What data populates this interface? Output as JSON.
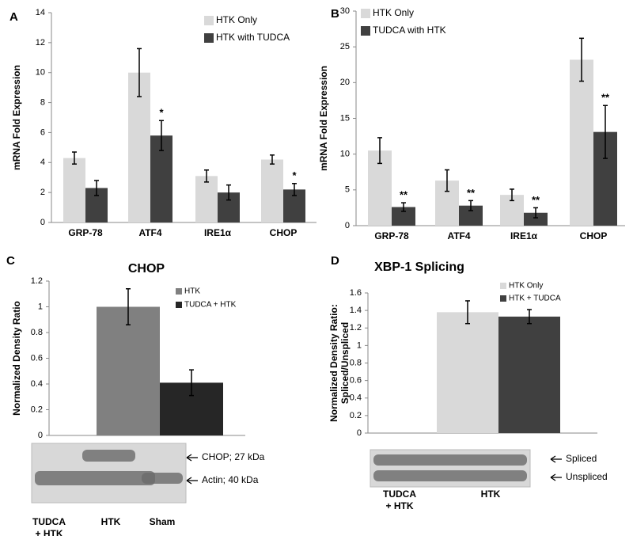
{
  "chart_data": [
    {
      "type": "bar",
      "panel_label": "A",
      "ylabel": [
        "mRNA Fold Expression"
      ],
      "categories": [
        "GRP-78",
        "ATF4",
        "IRE1α",
        "CHOP"
      ],
      "ylim": [
        0,
        14
      ],
      "yticks": [
        0,
        2,
        4,
        6,
        8,
        10,
        12,
        14
      ],
      "series": [
        {
          "name": "HTK Only",
          "color": "#d9d9d9",
          "values": [
            4.3,
            10.0,
            3.1,
            4.2
          ],
          "errors": [
            0.4,
            1.6,
            0.4,
            0.3
          ],
          "labels": [
            null,
            null,
            null,
            null
          ]
        },
        {
          "name": "HTK with TUDCA",
          "color": "#404040",
          "values": [
            2.3,
            5.8,
            2.0,
            2.2
          ],
          "errors": [
            0.5,
            1.0,
            0.5,
            0.4
          ],
          "labels": [
            null,
            "*",
            null,
            "*"
          ]
        }
      ]
    },
    {
      "type": "bar",
      "panel_label": "B",
      "ylabel": [
        "mRNA Fold Expression"
      ],
      "categories": [
        "GRP-78",
        "ATF4",
        "IRE1α",
        "CHOP"
      ],
      "ylim": [
        0,
        30
      ],
      "yticks": [
        0,
        5,
        10,
        15,
        20,
        25,
        30
      ],
      "series": [
        {
          "name": "HTK Only",
          "color": "#d9d9d9",
          "values": [
            10.5,
            6.3,
            4.3,
            23.2
          ],
          "errors": [
            1.8,
            1.5,
            0.8,
            3.0
          ],
          "labels": [
            null,
            null,
            null,
            null
          ]
        },
        {
          "name": "TUDCA with HTK",
          "color": "#404040",
          "values": [
            2.6,
            2.8,
            1.8,
            13.1
          ],
          "errors": [
            0.6,
            0.7,
            0.7,
            3.7
          ],
          "labels": [
            "**",
            "**",
            "**",
            "**"
          ]
        }
      ]
    },
    {
      "type": "bar",
      "panel_label": "C",
      "title": "CHOP",
      "ylabel": [
        "Normalized Density Ratio"
      ],
      "categories": [
        null
      ],
      "ylim": [
        0,
        1.2
      ],
      "yticks": [
        0,
        0.2,
        0.4,
        0.6,
        0.8,
        1,
        1.2
      ],
      "series": [
        {
          "name": "HTK",
          "color": "#808080",
          "values": [
            1.0
          ],
          "errors": [
            0.14
          ],
          "labels": [
            null
          ]
        },
        {
          "name": "TUDCA + HTK",
          "color": "#262626",
          "values": [
            0.41
          ],
          "errors": [
            0.1
          ],
          "labels": [
            null
          ]
        }
      ],
      "blot": {
        "bands": [
          "CHOP; 27 kDa",
          "Actin; 40 kDa"
        ],
        "lanes": [
          [
            "TUDCA",
            "+ HTK"
          ],
          [
            "HTK"
          ],
          [
            "Sham"
          ]
        ]
      }
    },
    {
      "type": "bar",
      "panel_label": "D",
      "title": "XBP-1 Splicing",
      "ylabel": [
        "Normalized Density Ratio:",
        "Spliced/Unspliced"
      ],
      "categories": [
        null
      ],
      "ylim": [
        0,
        1.6
      ],
      "yticks": [
        0,
        0.2,
        0.4,
        0.6,
        0.8,
        1,
        1.2,
        1.4,
        1.6
      ],
      "series": [
        {
          "name": "HTK Only",
          "color": "#d9d9d9",
          "values": [
            1.38
          ],
          "errors": [
            0.13
          ],
          "labels": [
            null
          ]
        },
        {
          "name": "HTK + TUDCA",
          "color": "#404040",
          "values": [
            1.33
          ],
          "errors": [
            0.08
          ],
          "labels": [
            null
          ]
        }
      ],
      "blot": {
        "bands": [
          "Spliced",
          "Unspliced"
        ],
        "lanes": [
          [
            "TUDCA",
            "+ HTK"
          ],
          [
            "HTK"
          ]
        ]
      }
    }
  ]
}
